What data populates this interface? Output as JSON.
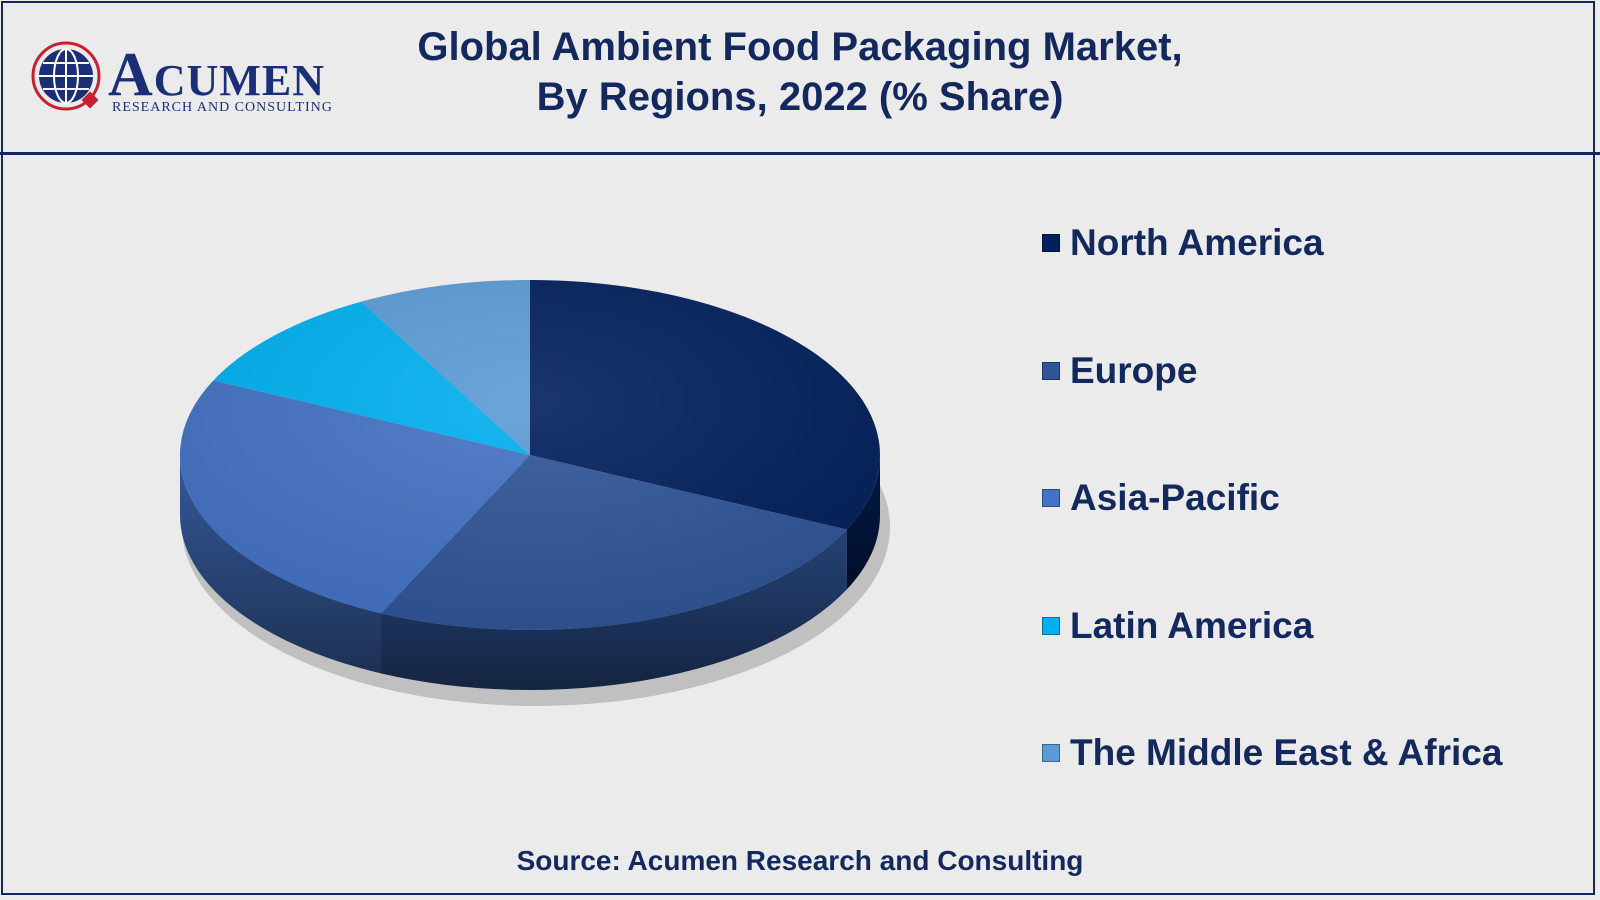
{
  "logo": {
    "word_initial": "A",
    "word_rest": "CUMEN",
    "subtitle": "RESEARCH AND CONSULTING"
  },
  "title": {
    "line1": "Global Ambient Food Packaging Market,",
    "line2": "By Regions, 2022 (% Share)"
  },
  "source": "Source: Acumen Research and Consulting",
  "colors": {
    "text": "#13285c",
    "background": "#ebebec"
  },
  "chart_data": {
    "type": "pie",
    "style": "3d",
    "legend_position": "right",
    "series": [
      {
        "name": "North America",
        "value": 32,
        "color": "#02205c"
      },
      {
        "name": "Europe",
        "value": 25,
        "color": "#2f5597"
      },
      {
        "name": "Asia-Pacific",
        "value": 25,
        "color": "#4472c4"
      },
      {
        "name": "Latin America",
        "value": 10,
        "color": "#00b0f0"
      },
      {
        "name": "The Middle East & Africa",
        "value": 8,
        "color": "#5b9bd5"
      }
    ]
  }
}
